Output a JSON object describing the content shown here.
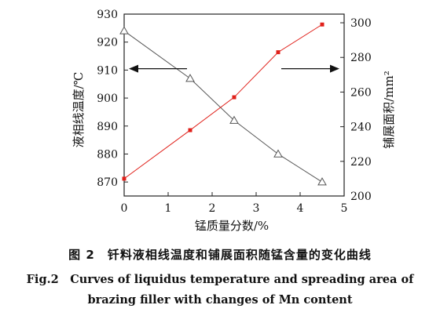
{
  "chart_data": {
    "type": "line",
    "x": [
      0,
      1.5,
      2.5,
      3.5,
      4.5
    ],
    "xlabel": "锰质量分数/%",
    "xlim": [
      0,
      5
    ],
    "xticks": [
      "0",
      "1",
      "2",
      "3",
      "4",
      "5"
    ],
    "ylabel_left": "液相线温度/℃",
    "ylim_left": [
      865,
      930
    ],
    "yticks_left": [
      "870",
      "880",
      "890",
      "900",
      "910",
      "920",
      "930"
    ],
    "ylabel_right": "铺展面积/mm²",
    "ylim_right": [
      200,
      305
    ],
    "yticks_right": [
      "200",
      "220",
      "240",
      "260",
      "280",
      "300"
    ],
    "series": [
      {
        "axis": "left",
        "marker": "triangle",
        "color": "#555555",
        "values": [
          924,
          907,
          892,
          880,
          870
        ]
      },
      {
        "axis": "right",
        "marker": "square",
        "color": "#e0201a",
        "values": [
          210,
          238,
          257,
          283,
          299
        ]
      }
    ],
    "grid": false
  },
  "caption": {
    "cn": "图 2　钎料液相线温度和铺展面积随锰含量的变化曲线",
    "en_line1": "Fig.2　Curves of liquidus temperature and spreading area of",
    "en_line2": "brazing filler with changes of Mn content"
  }
}
